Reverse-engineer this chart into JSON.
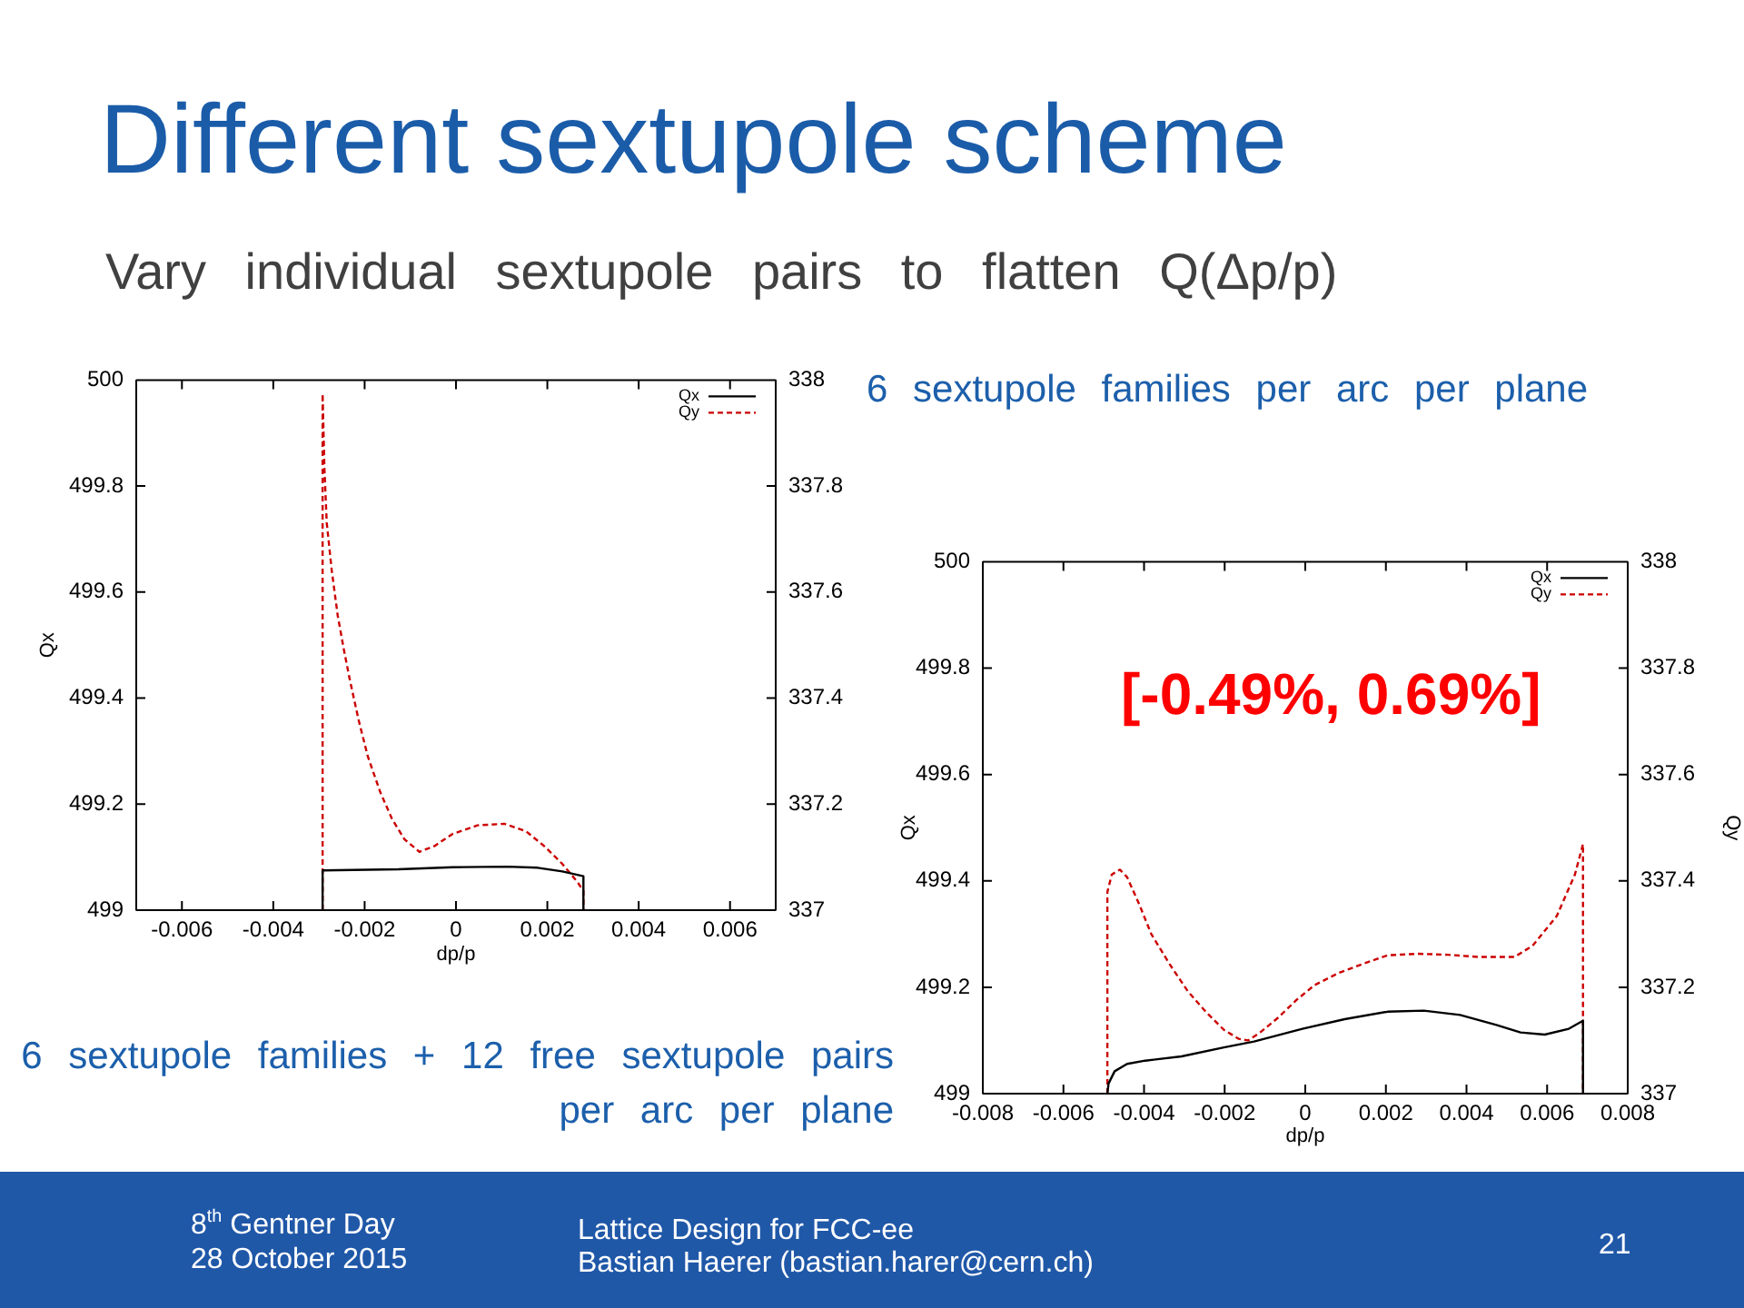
{
  "chart_data": [
    {
      "type": "line",
      "title": "Different sextupole scheme",
      "subtitle": "Vary individual sextupole pairs to flatten Q(Δp/p)",
      "xlabel": "dp/p",
      "ylabel": "Qx",
      "annotations": [
        "6 sextupole families per arc per plane",
        "8$^{th}$ Gentner Day",
        "28 October 2015",
        "Lattice Design for FCC-ee",
        "Bastian Haerer (bastian.harer@cern.ch)",
        "21"
      ],
      "series": [
        {
          "name": "Qx",
          "color": "#000000",
          "line_style": "solid",
          "x": [
            -0.00292,
            -0.00292,
            -0.00126,
            -7e-05,
            0.00113,
            0.00179,
            0.00233,
            0.00279,
            0.00279
          ],
          "values": [
            499,
            499.075,
            499.077,
            499.081,
            499.082,
            499.08,
            499.073,
            499.064,
            499
          ]
        },
        {
          "name": "Qy",
          "color": "#cc0000",
          "line_style": "dashed",
          "axis": "y2",
          "x": [
            -0.00292,
            -0.00292,
            -0.00288,
            -0.00283,
            -0.00272,
            -0.00259,
            -0.00246,
            -0.00233,
            -0.00213,
            -0.00193,
            -0.00166,
            -0.0014,
            -0.00113,
            -0.0008,
            -0.00047,
            -7e-05,
            0.00047,
            0.00106,
            0.00153,
            0.00193,
            0.00233,
            0.00266,
            0.00279,
            0.00279
          ],
          "values": [
            337,
            337.974,
            337.833,
            337.731,
            337.641,
            337.556,
            337.494,
            337.437,
            337.358,
            337.29,
            337.223,
            337.172,
            337.134,
            337.11,
            337.121,
            337.144,
            337.16,
            337.163,
            337.149,
            337.121,
            337.087,
            337.053,
            337.036,
            337
          ]
        }
      ],
      "xlim": [
        -0.007,
        0.007
      ],
      "xticks": [
        -0.006,
        -0.004,
        -0.002,
        0,
        0.002,
        0.004,
        0.006
      ],
      "ylim": [
        499,
        500
      ],
      "yticks": [
        499,
        499.2,
        499.4,
        499.6,
        499.8,
        500
      ],
      "y2lim": [
        337,
        338
      ],
      "y2ticks": [
        337,
        337.2,
        337.4,
        337.6,
        337.8,
        338
      ],
      "grid": false,
      "legend": "top right",
      "marker": "none"
    },
    {
      "type": "line",
      "xlabel": "dp/p",
      "ylabel": "Qx",
      "y2label": "Qy",
      "annotations": [
        "[-0.49%, 0.69%]",
        "6 sextupole families + 12 free sextupole pairs per arc per plane"
      ],
      "series": [
        {
          "name": "Qx",
          "color": "#000000",
          "line_style": "solid",
          "x": [
            -0.00491,
            -0.00488,
            -0.00473,
            -0.00442,
            -0.00397,
            -0.00307,
            -0.00202,
            -0.00127,
            -7e-05,
            0.00098,
            0.00204,
            0.00294,
            0.00384,
            0.00474,
            0.00534,
            0.00594,
            0.00654,
            0.00689,
            0.00689
          ],
          "values": [
            499,
            499.019,
            499.042,
            499.056,
            499.062,
            499.07,
            499.087,
            499.098,
            499.122,
            499.14,
            499.154,
            499.156,
            499.148,
            499.129,
            499.115,
            499.111,
            499.122,
            499.137,
            499
          ]
        },
        {
          "name": "Qy",
          "color": "#cc0000",
          "line_style": "dashed",
          "axis": "y2",
          "x": [
            -0.00491,
            -0.00491,
            -0.0048,
            -0.0046,
            -0.00442,
            -0.00412,
            -0.00382,
            -0.00337,
            -0.00292,
            -0.00247,
            -0.00202,
            -0.00165,
            -0.00142,
            -0.00112,
            -0.00067,
            -0.00022,
            0.00023,
            0.00083,
            0.00143,
            0.00204,
            0.00279,
            0.00354,
            0.00429,
            0.00519,
            0.00564,
            0.00624,
            0.00669,
            0.00689,
            0.00689
          ],
          "values": [
            337,
            337.379,
            337.412,
            337.421,
            337.407,
            337.356,
            337.3,
            337.244,
            337.193,
            337.154,
            337.12,
            337.103,
            337.1,
            337.115,
            337.143,
            337.176,
            337.204,
            337.227,
            337.244,
            337.26,
            337.263,
            337.261,
            337.257,
            337.257,
            337.278,
            337.334,
            337.412,
            337.469,
            337
          ]
        }
      ],
      "xlim": [
        -0.008,
        0.008
      ],
      "xticks": [
        -0.008,
        -0.006,
        -0.004,
        -0.002,
        0,
        0.002,
        0.004,
        0.006,
        0.008
      ],
      "ylim": [
        499,
        500
      ],
      "yticks": [
        499,
        499.2,
        499.4,
        499.6,
        499.8,
        500
      ],
      "y2lim": [
        337,
        338
      ],
      "y2ticks": [
        337,
        337.2,
        337.4,
        337.6,
        337.8,
        338
      ],
      "grid": false,
      "legend": "top right",
      "marker": "none"
    }
  ]
}
